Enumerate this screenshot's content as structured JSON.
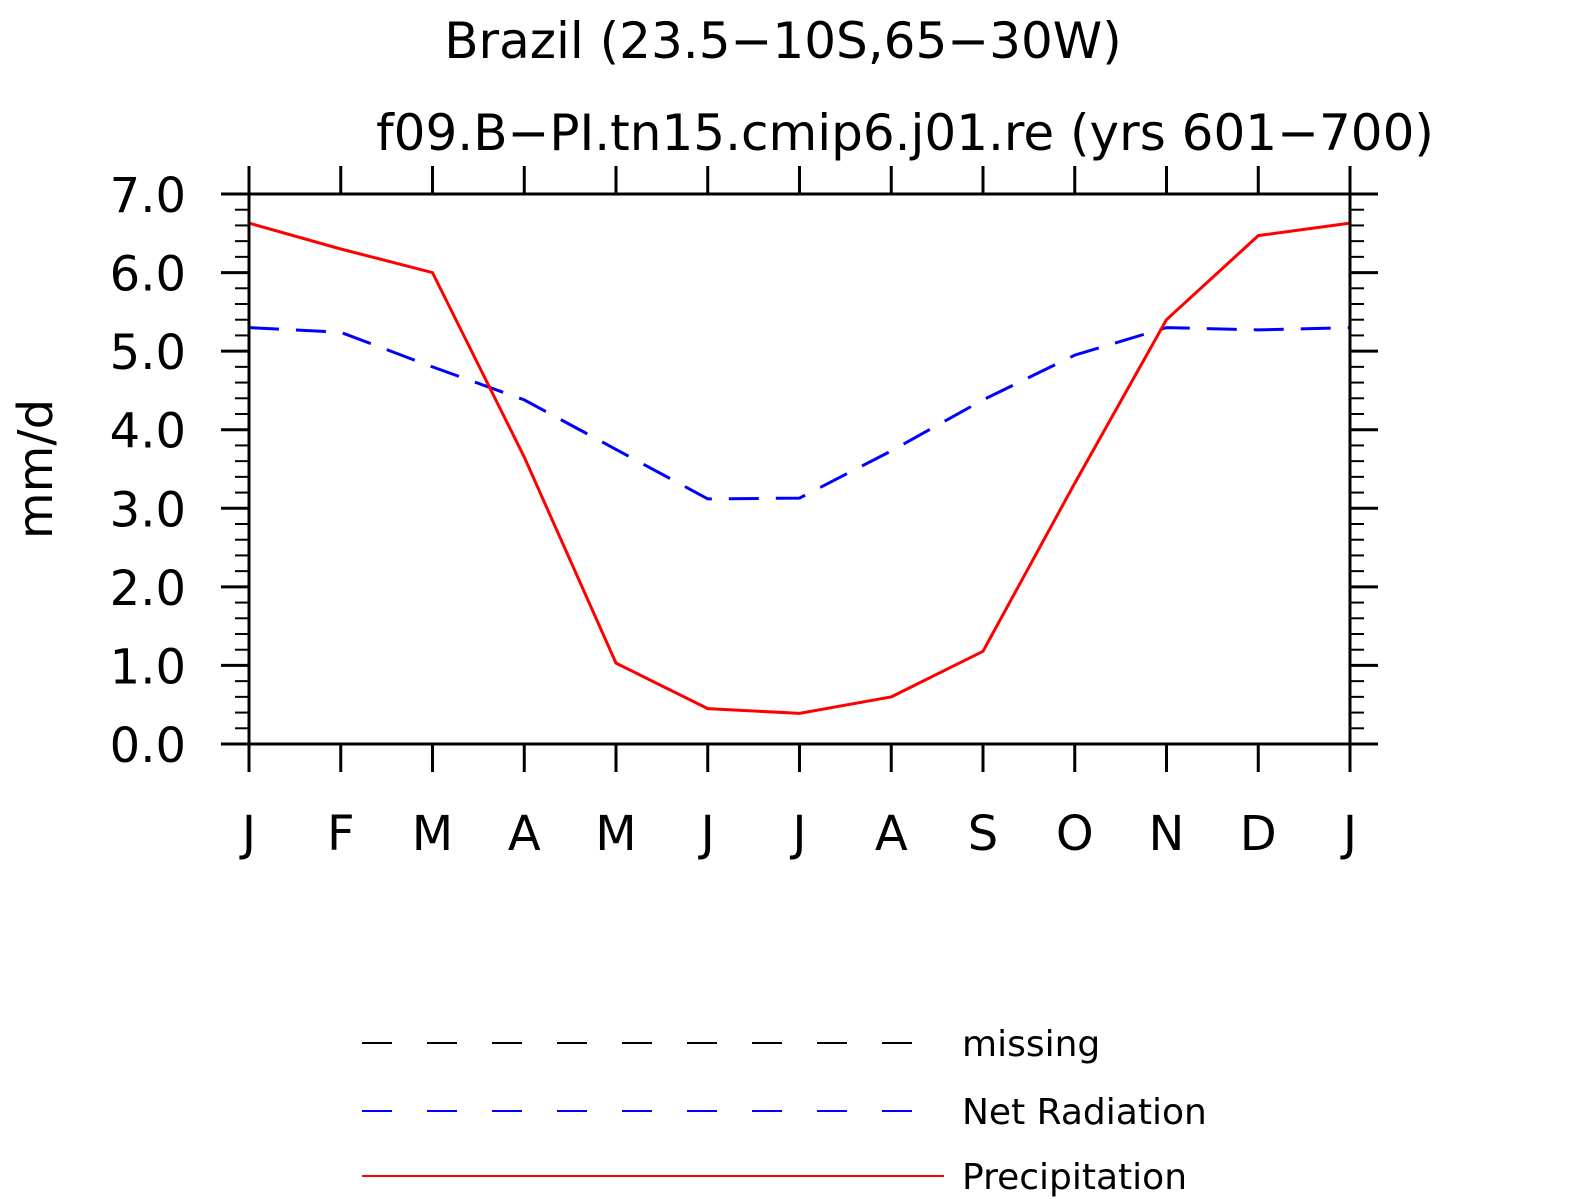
{
  "chart_data": {
    "type": "line",
    "title": "Brazil (23.5−10S,65−30W)",
    "subtitle": "f09.B−PI.tn15.cmip6.j01.re (yrs 601−700)",
    "ylabel": "mm/d",
    "xlabel": "",
    "categories": [
      "J",
      "F",
      "M",
      "A",
      "M",
      "J",
      "J",
      "A",
      "S",
      "O",
      "N",
      "D",
      "J"
    ],
    "ylim": [
      0,
      7
    ],
    "ytick_labels": [
      "0.0",
      "1.0",
      "2.0",
      "3.0",
      "4.0",
      "5.0",
      "6.0",
      "7.0"
    ],
    "ytick_values": [
      0,
      1,
      2,
      3,
      4,
      5,
      6,
      7
    ],
    "grid": false,
    "legend_position": "bottom",
    "series": [
      {
        "name": "Net Radiation",
        "color": "#0000ff",
        "dash": "dashed",
        "values": [
          5.3,
          5.24,
          4.8,
          4.38,
          3.75,
          3.12,
          3.13,
          3.73,
          4.38,
          4.95,
          5.3,
          5.27,
          5.3
        ]
      },
      {
        "name": "Precipitation",
        "color": "#ff0000",
        "dash": "solid",
        "values": [
          6.63,
          6.3,
          6.0,
          3.65,
          1.03,
          0.45,
          0.39,
          0.6,
          1.18,
          3.32,
          5.4,
          6.47,
          6.63
        ]
      }
    ],
    "legend": [
      {
        "label": "missing",
        "color": "#000000",
        "dash": "dashed"
      },
      {
        "label": "Net Radiation",
        "color": "#0000ff",
        "dash": "dashed"
      },
      {
        "label": "Precipitation",
        "color": "#ff0000",
        "dash": "solid"
      }
    ]
  }
}
